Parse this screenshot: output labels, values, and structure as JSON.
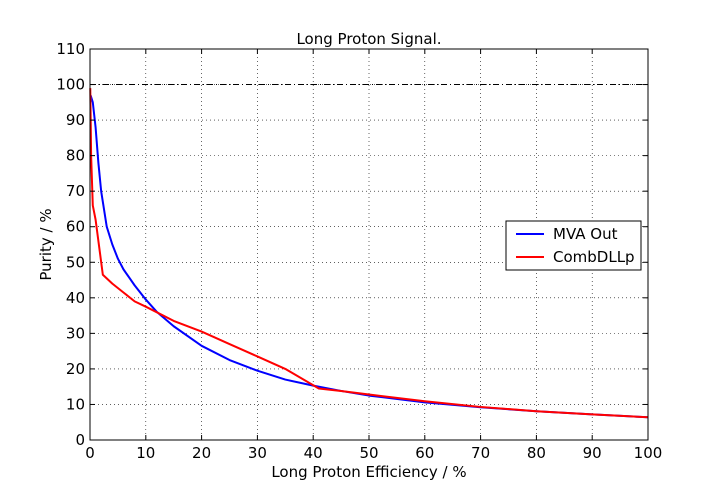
{
  "chart_data": {
    "type": "line",
    "title": "Long Proton Signal.",
    "xlabel": "Long Proton Efficiency / %",
    "ylabel": "Purity / %",
    "xlim": [
      0,
      100
    ],
    "ylim": [
      0,
      110
    ],
    "xticks": [
      "0",
      "10",
      "20",
      "30",
      "40",
      "50",
      "60",
      "70",
      "80",
      "90",
      "100"
    ],
    "yticks": [
      "0",
      "10",
      "20",
      "30",
      "40",
      "50",
      "60",
      "70",
      "80",
      "90",
      "100",
      "110"
    ],
    "grid": true,
    "legend_position": "right",
    "reference_line": {
      "y": 100,
      "style": "dash-dot",
      "color": "#000000"
    },
    "series": [
      {
        "name": "MVA Out",
        "color": "#0000ff",
        "x": [
          0.1,
          0.5,
          1,
          1.5,
          2,
          3,
          4,
          5,
          6,
          8,
          10,
          12,
          15,
          20,
          25,
          30,
          35,
          40,
          45,
          50,
          60,
          70,
          80,
          90,
          100
        ],
        "y": [
          97,
          95,
          88,
          78,
          70,
          60,
          55,
          51,
          48,
          43.5,
          39.5,
          36,
          32,
          26.5,
          22.5,
          19.5,
          17,
          15.3,
          13.8,
          12.5,
          10.6,
          9.2,
          8.1,
          7.2,
          6.4
        ]
      },
      {
        "name": "CombDLLp",
        "color": "#ff0000",
        "x": [
          0.05,
          0.2,
          0.5,
          1,
          2.3,
          4,
          6,
          8,
          10,
          15,
          20,
          25,
          30,
          35,
          41,
          45,
          50,
          60,
          70,
          80,
          90,
          100
        ],
        "y": [
          99,
          80,
          66,
          62,
          46.5,
          44,
          41.5,
          39,
          37.5,
          33.5,
          30.5,
          27,
          23.5,
          20,
          14.5,
          13.8,
          12.8,
          10.9,
          9.3,
          8.1,
          7.2,
          6.4
        ]
      }
    ]
  }
}
